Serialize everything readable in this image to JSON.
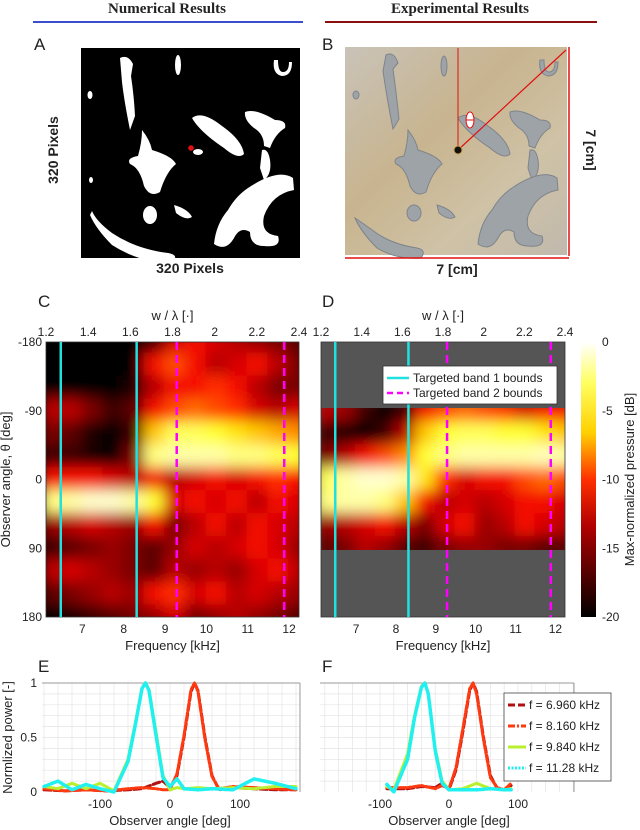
{
  "headers": {
    "numerical": {
      "label": "Numerical Results",
      "color": "#3a4fd0"
    },
    "experimental": {
      "label": "Experimental Results",
      "color": "#8a1010"
    }
  },
  "panels": {
    "A": {
      "label": "A",
      "xlabel": "320 Pixels",
      "ylabel": "320 Pixels"
    },
    "B": {
      "label": "B",
      "width_label": "7 [cm]",
      "height_label": "7 [cm]",
      "dimension_color": "#e01010"
    },
    "C": {
      "label": "C"
    },
    "D": {
      "label": "D"
    },
    "E": {
      "label": "E"
    },
    "F": {
      "label": "F"
    }
  },
  "chart_data": [
    {
      "id": "C",
      "type": "heatmap",
      "xlabel": "Frequency [kHz]",
      "x2label": "w / λ [·]",
      "ylabel": "Observer angle, θ [deg]",
      "xticks": [
        "7",
        "8",
        "9",
        "10",
        "11",
        "12"
      ],
      "x2ticks": [
        "1.2",
        "1.4",
        "1.6",
        "1.8",
        "2",
        "2.2",
        "2.4"
      ],
      "yticks": [
        "-180",
        "-90",
        "0",
        "90",
        "180"
      ],
      "x2lim": [
        1.2,
        2.4
      ],
      "ylim": [
        -180,
        180
      ],
      "colormap": "hot",
      "zlim": [
        -20,
        0
      ],
      "frequencies_khz": [
        6.25,
        6.75,
        7.25,
        7.75,
        8.25,
        8.75,
        9.25,
        9.75,
        10.25,
        10.75,
        11.25,
        11.75,
        12.25
      ],
      "angles_deg": [
        -180,
        -150,
        -120,
        -90,
        -60,
        -30,
        0,
        30,
        60,
        90,
        120,
        150,
        180
      ],
      "values_db": [
        [
          -20,
          -20,
          -20,
          -20,
          -20,
          -18,
          -13,
          -12,
          -13,
          -14,
          -15,
          -16,
          -17
        ],
        [
          -20,
          -20,
          -20,
          -20,
          -20,
          -12,
          -10,
          -12,
          -14,
          -13,
          -12,
          -14,
          -16
        ],
        [
          -20,
          -20,
          -20,
          -20,
          -19,
          -14,
          -12,
          -12,
          -11,
          -12,
          -14,
          -16,
          -16
        ],
        [
          -14,
          -14,
          -16,
          -18,
          -17,
          -12,
          -10,
          -9,
          -10,
          -11,
          -13,
          -14,
          -13
        ],
        [
          -16,
          -17,
          -19,
          -20,
          -18,
          -6,
          -3,
          -3,
          -4,
          -5,
          -6,
          -7,
          -8
        ],
        [
          -18,
          -18,
          -19,
          -20,
          -16,
          -2,
          -1,
          -1,
          -1,
          -2,
          -2,
          -3,
          -4
        ],
        [
          -12,
          -12,
          -12,
          -13,
          -14,
          -12,
          -14,
          -13,
          -12,
          -13,
          -12,
          -11,
          -12
        ],
        [
          -2,
          -1,
          0,
          0,
          -1,
          -4,
          -13,
          -12,
          -13,
          -12,
          -14,
          -12,
          -13
        ],
        [
          -15,
          -14,
          -13,
          -14,
          -15,
          -12,
          -16,
          -14,
          -12,
          -14,
          -12,
          -13,
          -14
        ],
        [
          -18,
          -17,
          -16,
          -15,
          -16,
          -17,
          -15,
          -13,
          -14,
          -13,
          -12,
          -13,
          -15
        ],
        [
          -14,
          -13,
          -14,
          -15,
          -16,
          -17,
          -14,
          -15,
          -14,
          -15,
          -13,
          -12,
          -14
        ],
        [
          -17,
          -16,
          -15,
          -14,
          -15,
          -12,
          -11,
          -13,
          -12,
          -14,
          -13,
          -14,
          -15
        ],
        [
          -20,
          -19,
          -18,
          -17,
          -16,
          -15,
          -13,
          -16,
          -15,
          -14,
          -15,
          -16,
          -17
        ]
      ],
      "band_lines_w_lambda": {
        "band1": [
          1.27,
          1.63
        ],
        "band2": [
          1.82,
          2.33
        ]
      }
    },
    {
      "id": "D",
      "type": "heatmap",
      "xlabel": "Frequency [kHz]",
      "x2label": "w / λ [·]",
      "xticks": [
        "7",
        "8",
        "9",
        "10",
        "11",
        "12"
      ],
      "x2ticks": [
        "1.2",
        "1.4",
        "1.6",
        "1.8",
        "2",
        "2.2",
        "2.4"
      ],
      "x2lim": [
        1.2,
        2.4
      ],
      "ylim": [
        -180,
        180
      ],
      "measured_angle_range": [
        -90,
        90
      ],
      "no_data_color": "#555555",
      "colormap": "hot",
      "zlim": [
        -20,
        0
      ],
      "frequencies_khz": [
        6.25,
        6.75,
        7.25,
        7.75,
        8.25,
        8.75,
        9.25,
        9.75,
        10.25,
        10.75,
        11.25,
        11.75,
        12.25
      ],
      "angles_deg": [
        -90,
        -60,
        -30,
        0,
        30,
        60,
        90
      ],
      "values_db": [
        [
          -14,
          -15,
          -18,
          -20,
          -18,
          -12,
          -10,
          -9,
          -10,
          -11,
          -13,
          -12,
          -12
        ],
        [
          -18,
          -19,
          -20,
          -18,
          -14,
          -6,
          -4,
          -3,
          -3,
          -4,
          -4,
          -5,
          -6
        ],
        [
          -16,
          -14,
          -12,
          -10,
          -8,
          -4,
          -2,
          -1,
          -1,
          -1,
          -1,
          -0.5,
          -1
        ],
        [
          -3,
          -1,
          0,
          0,
          -1,
          -5,
          -11,
          -13,
          -12,
          -12,
          -10,
          -9,
          -10
        ],
        [
          -2,
          -1,
          -1,
          -2,
          -6,
          -12,
          -14,
          -13,
          -14,
          -13,
          -12,
          -12,
          -13
        ],
        [
          -15,
          -14,
          -13,
          -12,
          -14,
          -16,
          -13,
          -12,
          -15,
          -14,
          -12,
          -13,
          -14
        ],
        [
          -17,
          -16,
          -14,
          -15,
          -17,
          -18,
          -16,
          -15,
          -15,
          -16,
          -16,
          -17,
          -17
        ]
      ],
      "band_lines_w_lambda": {
        "band1": [
          1.27,
          1.63
        ],
        "band2": [
          1.82,
          2.33
        ]
      },
      "legend": {
        "placement": "top-right",
        "entries": [
          {
            "label": "Targeted band 1 bounds",
            "color": "#20e0e0",
            "style": "solid"
          },
          {
            "label": "Targeted band 2 bounds",
            "color": "#ff00ff",
            "style": "dashed"
          }
        ]
      },
      "colorbar": {
        "label": "Max-normalized pressure [dB]",
        "ticks": [
          "0",
          "-5",
          "-10",
          "-15",
          "-20"
        ]
      }
    },
    {
      "id": "E",
      "type": "line",
      "xlabel": "Observer angle [deg]",
      "ylabel": "Normlized power [-]",
      "xticks": [
        "-100",
        "0",
        "100"
      ],
      "yticks": [
        "0",
        "0.5",
        "1"
      ],
      "xlim": [
        -180,
        180
      ],
      "ylim": [
        0,
        1
      ],
      "grid": true,
      "series": [
        {
          "name": "f = 6.960 kHz",
          "color": "#b01010",
          "style": "dashed",
          "x": [
            -180,
            -150,
            -120,
            -90,
            -60,
            -40,
            -20,
            -10,
            0,
            10,
            20,
            30,
            35,
            40,
            50,
            60,
            70,
            90,
            120,
            150,
            180
          ],
          "y": [
            0.02,
            0.01,
            0.02,
            0.01,
            0.02,
            0.03,
            0.08,
            0.1,
            0.04,
            0.15,
            0.5,
            0.92,
            1,
            0.93,
            0.5,
            0.15,
            0.02,
            0.04,
            0.03,
            0.02,
            0.02
          ]
        },
        {
          "name": "f = 8.160 kHz",
          "color": "#ff3a10",
          "style": "dashdot",
          "x": [
            -180,
            -150,
            -120,
            -90,
            -60,
            -40,
            -20,
            -10,
            0,
            10,
            20,
            30,
            35,
            40,
            50,
            60,
            70,
            90,
            120,
            150,
            180
          ],
          "y": [
            0.03,
            0.01,
            0.02,
            0.01,
            0.03,
            0.04,
            0.03,
            0.02,
            0.02,
            0.17,
            0.52,
            0.94,
            1,
            0.92,
            0.48,
            0.14,
            0.03,
            0.05,
            0.04,
            0.03,
            0.02
          ]
        },
        {
          "name": "f = 9.840 kHz",
          "color": "#b8f030",
          "style": "solid",
          "x": [
            -180,
            -160,
            -140,
            -120,
            -100,
            -80,
            -60,
            -50,
            -40,
            -35,
            -30,
            -20,
            -10,
            0,
            10,
            20,
            40,
            60,
            90,
            120,
            150,
            180
          ],
          "y": [
            0.05,
            0.03,
            0.08,
            0.03,
            0.08,
            0.01,
            0.3,
            0.62,
            0.95,
            1,
            0.94,
            0.55,
            0.15,
            0.02,
            0.04,
            0.03,
            0.04,
            0.03,
            0.04,
            0.03,
            0.05,
            0.05
          ]
        },
        {
          "name": "f = 11.28 kHz",
          "color": "#20f0f0",
          "style": "dotted",
          "x": [
            -180,
            -160,
            -140,
            -120,
            -100,
            -80,
            -60,
            -50,
            -40,
            -35,
            -30,
            -20,
            -10,
            0,
            10,
            20,
            40,
            60,
            90,
            120,
            150,
            180
          ],
          "y": [
            0.05,
            0.1,
            0.02,
            0.07,
            0.03,
            0.0,
            0.28,
            0.6,
            0.95,
            1,
            0.93,
            0.52,
            0.13,
            0.05,
            0.12,
            0.03,
            0.02,
            0.03,
            0.02,
            0.12,
            0.08,
            0.03
          ]
        }
      ]
    },
    {
      "id": "F",
      "type": "line",
      "xlabel": "Observer angle [deg]",
      "xticks": [
        "-100",
        "0",
        "100"
      ],
      "xlim": [
        -90,
        90
      ],
      "ylim": [
        0,
        1
      ],
      "grid": true,
      "legend": {
        "placement": "right"
      },
      "series": [
        {
          "name": "f = 6.960 kHz",
          "color": "#b01010",
          "style": "dashed",
          "x": [
            -90,
            -60,
            -40,
            -20,
            -10,
            0,
            10,
            20,
            30,
            35,
            40,
            50,
            60,
            70,
            80,
            90
          ],
          "y": [
            0.03,
            0.03,
            0.05,
            0.04,
            0.08,
            0.02,
            0.2,
            0.55,
            0.93,
            1,
            0.92,
            0.5,
            0.15,
            0.03,
            0.02,
            0.06
          ]
        },
        {
          "name": "f = 8.160 kHz",
          "color": "#ff3a10",
          "style": "dashdot",
          "x": [
            -90,
            -60,
            -40,
            -20,
            -10,
            0,
            10,
            20,
            30,
            35,
            40,
            50,
            60,
            70,
            80,
            90
          ],
          "y": [
            0.04,
            0.04,
            0.06,
            0.03,
            0.06,
            0.03,
            0.22,
            0.58,
            0.95,
            1,
            0.9,
            0.48,
            0.13,
            0.04,
            0.02,
            0.08
          ]
        },
        {
          "name": "f = 9.840 kHz",
          "color": "#b8f030",
          "style": "solid",
          "x": [
            -90,
            -80,
            -60,
            -50,
            -40,
            -35,
            -30,
            -20,
            -10,
            0,
            20,
            40,
            60,
            80,
            90
          ],
          "y": [
            0.05,
            0.02,
            0.35,
            0.7,
            0.97,
            1,
            0.9,
            0.4,
            0.1,
            0.02,
            0.03,
            0.08,
            0.03,
            0.02,
            0.03
          ]
        },
        {
          "name": "f = 11.28 kHz",
          "color": "#20f0f0",
          "style": "dotted",
          "x": [
            -90,
            -80,
            -60,
            -50,
            -40,
            -35,
            -30,
            -20,
            -10,
            0,
            20,
            40,
            60,
            80,
            90
          ],
          "y": [
            0.07,
            0.0,
            0.3,
            0.68,
            0.96,
            1,
            0.9,
            0.38,
            0.08,
            0.02,
            0.02,
            0.02,
            0.03,
            0.02,
            0.02
          ]
        }
      ]
    }
  ]
}
